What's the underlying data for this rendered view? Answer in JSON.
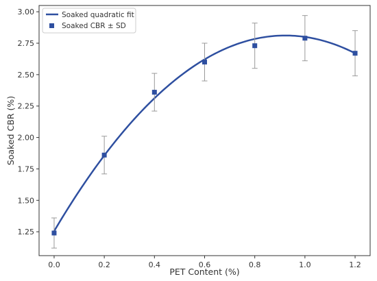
{
  "chart_data": {
    "type": "scatter",
    "xlabel": "PET Content (%)",
    "ylabel": "Soaked CBR (%)",
    "xlim": [
      -0.06,
      1.26
    ],
    "ylim": [
      1.06,
      3.05
    ],
    "x_ticks": [
      0.0,
      0.2,
      0.4,
      0.6,
      0.8,
      1.0,
      1.2
    ],
    "x_tick_labels": [
      "0.0",
      "0.2",
      "0.4",
      "0.6",
      "0.8",
      "1.0",
      "1.2"
    ],
    "y_ticks": [
      1.25,
      1.5,
      1.75,
      2.0,
      2.25,
      2.5,
      2.75,
      3.0
    ],
    "y_tick_labels": [
      "1.25",
      "1.50",
      "1.75",
      "2.00",
      "2.25",
      "2.50",
      "2.75",
      "3.00"
    ],
    "grid": false,
    "legend_position": "top-left",
    "series": [
      {
        "name": "Soaked CBR ± SD",
        "kind": "scatter-errorbar",
        "color": "#2e4fa0",
        "x": [
          0.0,
          0.2,
          0.4,
          0.6,
          0.8,
          1.0,
          1.2
        ],
        "y": [
          1.24,
          1.86,
          2.36,
          2.6,
          2.73,
          2.79,
          2.67
        ],
        "sd": [
          0.12,
          0.15,
          0.15,
          0.15,
          0.18,
          0.18,
          0.18
        ]
      },
      {
        "name": "Soaked quadratic fit",
        "kind": "line",
        "color": "#2e4fa0",
        "coefficients": [
          1.255,
          3.375,
          -1.83
        ],
        "x_range": [
          0.0,
          1.2
        ]
      }
    ],
    "errorbar_color": "#999999"
  }
}
